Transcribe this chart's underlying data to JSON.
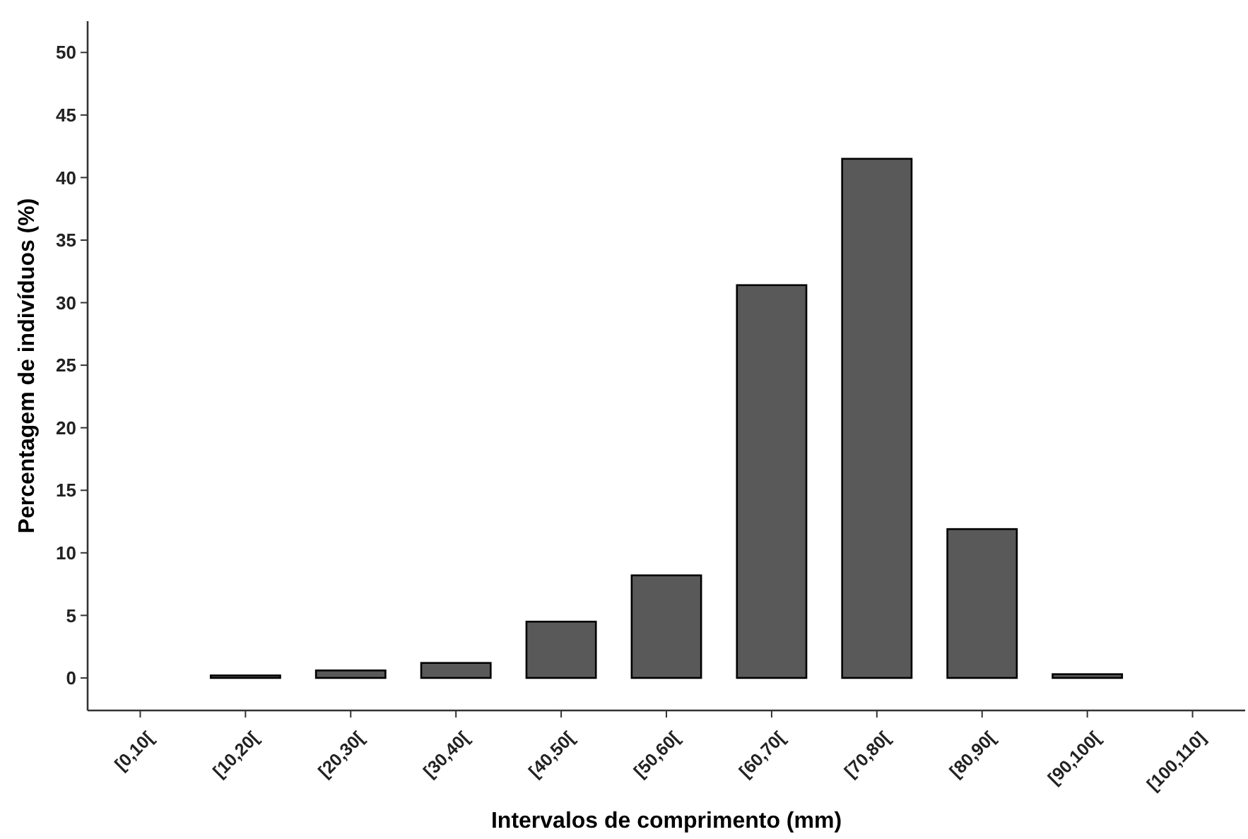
{
  "chart_data": {
    "type": "bar",
    "xlabel": "Intervalos de comprimento (mm)",
    "ylabel": "Percentagem de indivíduos (%)",
    "categories": [
      "[0,10[",
      "[10,20[",
      "[20,30[",
      "[30,40[",
      "[40,50[",
      "[50,60[",
      "[60,70[",
      "[70,80[",
      "[80,90[",
      "[90,100[",
      "[100,110]"
    ],
    "values": [
      0,
      0.2,
      0.6,
      1.2,
      4.5,
      8.2,
      31.4,
      41.5,
      11.9,
      0.3,
      0
    ],
    "color": "#595959",
    "ylim": [
      -2.6,
      52.5
    ],
    "yticks": [
      0,
      5,
      10,
      15,
      20,
      25,
      30,
      35,
      40,
      45,
      50
    ],
    "grid": false
  }
}
